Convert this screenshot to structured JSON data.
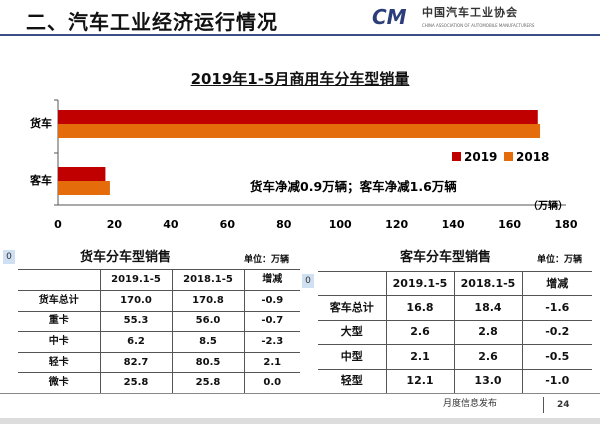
{
  "header": {
    "title": "二、汽车工业经济运行情况",
    "logo_cn": "中国汽车工业协会",
    "logo_en": "CHINA ASSOCIATION OF AUTOMOBILE MANUFACTURERS",
    "logo_mark": "CAM"
  },
  "chart_data": {
    "type": "bar",
    "orientation": "horizontal",
    "title": "2019年1-5月商用车分车型销量",
    "categories": [
      "货车",
      "客车"
    ],
    "series": [
      {
        "name": "2019",
        "color": "#c00000",
        "values": [
          170.0,
          16.8
        ]
      },
      {
        "name": "2018",
        "color": "#e46c0a",
        "values": [
          170.8,
          18.4
        ]
      }
    ],
    "xlim": [
      0,
      180
    ],
    "xticks": [
      0,
      20,
      40,
      60,
      80,
      100,
      120,
      140,
      160,
      180
    ],
    "xunit": "（万辆）",
    "legend": "right",
    "annotation": "货车净减0.9万辆；客车净减1.6万辆"
  },
  "truck_table": {
    "title": "货车分车型销售",
    "unit": "单位：万辆",
    "marker": "0",
    "headers": [
      "",
      "2019.1-5",
      "2018.1-5",
      "增减"
    ],
    "rows": [
      [
        "货车总计",
        "170.0",
        "170.8",
        "-0.9"
      ],
      [
        "重卡",
        "55.3",
        "56.0",
        "-0.7"
      ],
      [
        "中卡",
        "6.2",
        "8.5",
        "-2.3"
      ],
      [
        "轻卡",
        "82.7",
        "80.5",
        "2.1"
      ],
      [
        "微卡",
        "25.8",
        "25.8",
        "0.0"
      ]
    ]
  },
  "bus_table": {
    "title": "客车分车型销售",
    "unit": "单位：万辆",
    "marker": "0",
    "headers": [
      "",
      "2019.1-5",
      "2018.1-5",
      "增减"
    ],
    "rows": [
      [
        "客车总计",
        "16.8",
        "18.4",
        "-1.6"
      ],
      [
        "大型",
        "2.6",
        "2.8",
        "-0.2"
      ],
      [
        "中型",
        "2.1",
        "2.6",
        "-0.5"
      ],
      [
        "轻型",
        "12.1",
        "13.0",
        "-1.0"
      ]
    ]
  },
  "footer": {
    "label": "月度信息发布",
    "page": "24"
  }
}
